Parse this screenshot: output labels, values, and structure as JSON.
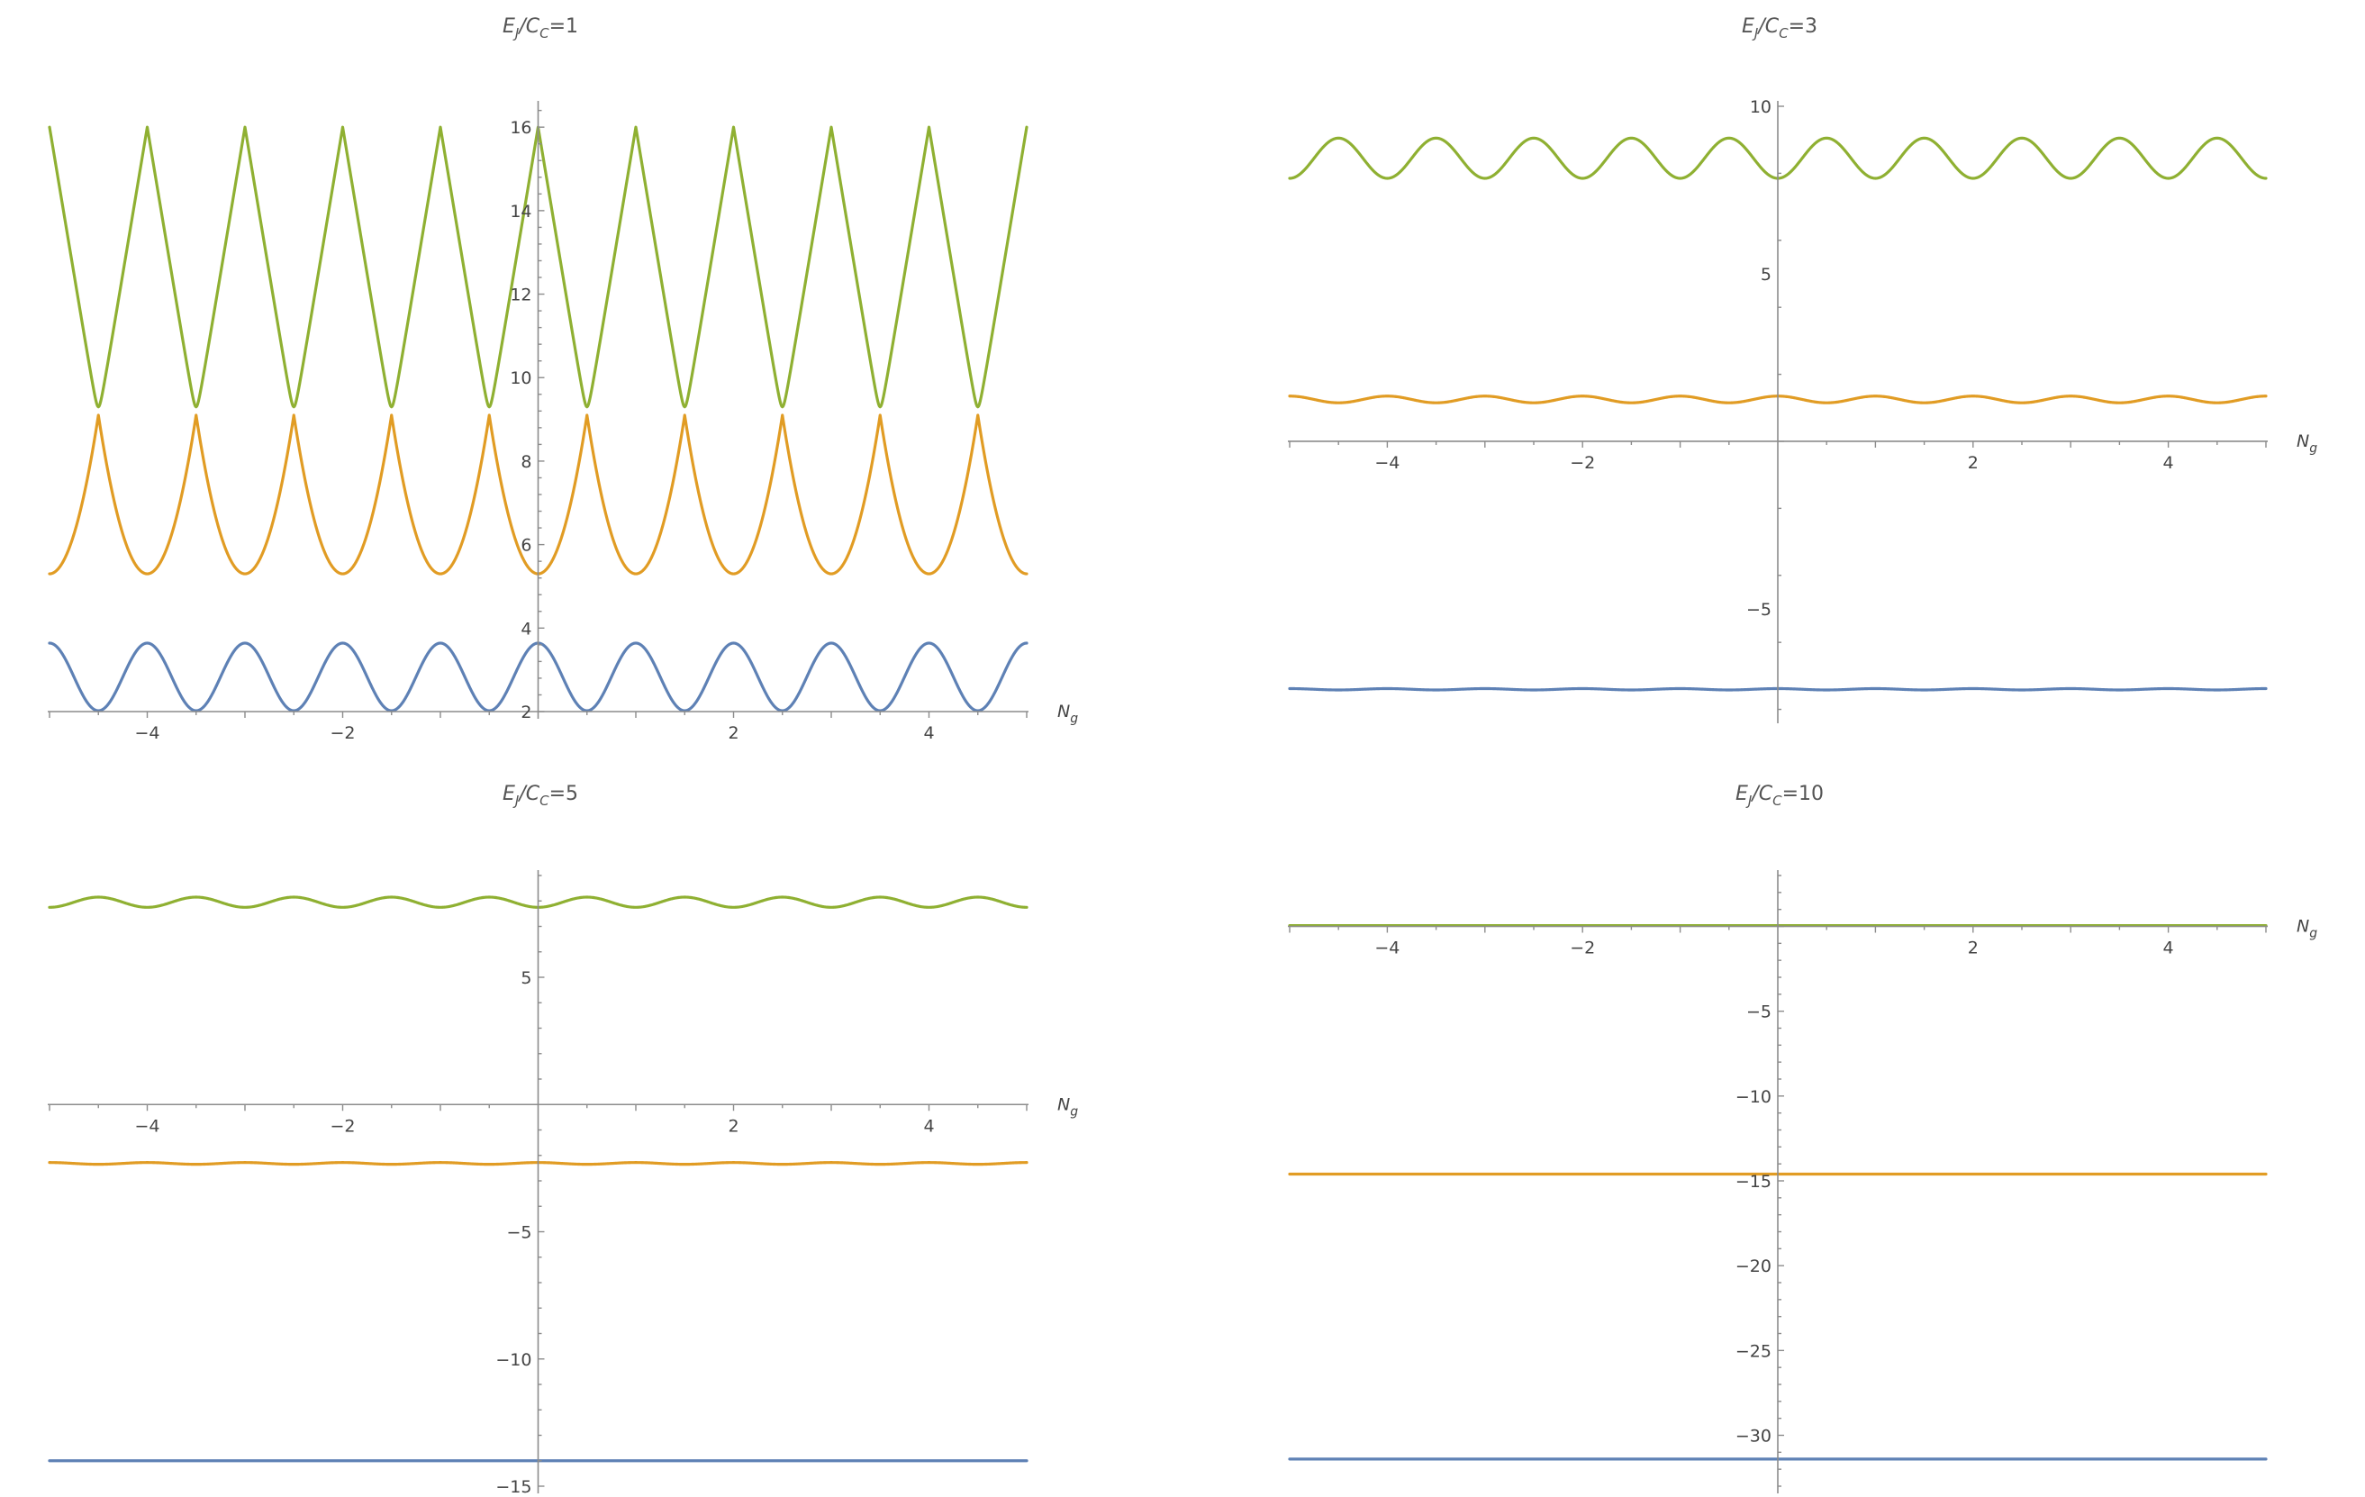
{
  "chart_data": [
    {
      "type": "line",
      "title": "E_J/E_C=1",
      "title_parts": {
        "e": "E",
        "j": "J",
        "slash": "/",
        "c": "C",
        "eq": "=1"
      },
      "xlabel": "N_g",
      "xlabel_parts": {
        "n": "N",
        "g": "g"
      },
      "ylabel": "",
      "xlim": [
        -5,
        5
      ],
      "ylim": [
        2,
        16.5
      ],
      "x_axis_at": 2,
      "xticks": [
        -4,
        -2,
        2,
        4
      ],
      "xtick_labels": [
        "−4",
        "−2",
        "2",
        "4"
      ],
      "yticks": [
        2,
        4,
        6,
        8,
        10,
        12,
        14,
        16
      ],
      "ytick_labels": [
        "2",
        "4",
        "6",
        "8",
        "10",
        "12",
        "14",
        "16"
      ],
      "grid": false,
      "series": [
        {
          "color": "#5e81b5",
          "shape": "cos",
          "period": 1,
          "min": 2.02,
          "max": 3.64,
          "max_at": 0
        },
        {
          "color": "#e19c24",
          "shape": "parabola",
          "period": 1,
          "min": 5.3,
          "max": 9.1,
          "min_at": 0
        },
        {
          "color": "#8fb032",
          "shape": "vee",
          "period": 1,
          "min": 9.3,
          "max": 16.0,
          "max_at": 0
        }
      ]
    },
    {
      "type": "line",
      "title": "E_J/E_C=3",
      "title_parts": {
        "e": "E",
        "j": "J",
        "slash": "/",
        "c": "C",
        "eq": "=3"
      },
      "xlabel": "N_g",
      "xlabel_parts": {
        "n": "N",
        "g": "g"
      },
      "ylabel": "",
      "xlim": [
        -5,
        5
      ],
      "ylim": [
        -8.2,
        10
      ],
      "x_axis_at": 0,
      "xticks": [
        -4,
        -2,
        2,
        4
      ],
      "xtick_labels": [
        "−4",
        "−2",
        "2",
        "4"
      ],
      "yticks": [
        -5,
        5,
        10
      ],
      "ytick_labels": [
        "−5",
        "5",
        "10"
      ],
      "grid": false,
      "series": [
        {
          "color": "#5e81b5",
          "shape": "cos",
          "period": 1,
          "min": -7.42,
          "max": -7.38,
          "max_at": 0
        },
        {
          "color": "#e19c24",
          "shape": "cos",
          "period": 1,
          "min": 1.15,
          "max": 1.35,
          "max_at": 0
        },
        {
          "color": "#8fb032",
          "shape": "cos",
          "period": 1,
          "min": 7.85,
          "max": 9.05,
          "min_at": 0
        }
      ]
    },
    {
      "type": "line",
      "title": "E_J/E_C=5",
      "title_parts": {
        "e": "E",
        "j": "J",
        "slash": "/",
        "c": "C",
        "eq": "=5"
      },
      "xlabel": "N_g",
      "xlabel_parts": {
        "n": "N",
        "g": "g"
      },
      "ylabel": "",
      "xlim": [
        -5,
        5
      ],
      "ylim": [
        -15,
        9
      ],
      "x_axis_at": 0,
      "xticks": [
        -4,
        -2,
        2,
        4
      ],
      "xtick_labels": [
        "−4",
        "−2",
        "2",
        "4"
      ],
      "yticks": [
        -15,
        -10,
        -5,
        5
      ],
      "ytick_labels": [
        "−15",
        "−10",
        "−5",
        "5"
      ],
      "grid": false,
      "series": [
        {
          "color": "#5e81b5",
          "shape": "flat",
          "period": 1,
          "min": -14.0,
          "max": -14.0,
          "max_at": 0
        },
        {
          "color": "#e19c24",
          "shape": "cos",
          "period": 1,
          "min": -2.35,
          "max": -2.28,
          "max_at": 0
        },
        {
          "color": "#8fb032",
          "shape": "cos",
          "period": 1,
          "min": 7.75,
          "max": 8.15,
          "min_at": 0
        }
      ]
    },
    {
      "type": "line",
      "title": "E_J/E_C=10",
      "title_parts": {
        "e": "E",
        "j": "J",
        "slash": "/",
        "c": "C",
        "eq": "=10"
      },
      "xlabel": "N_g",
      "xlabel_parts": {
        "n": "N",
        "g": "g"
      },
      "ylabel": "",
      "xlim": [
        -5,
        5
      ],
      "ylim": [
        -33,
        3
      ],
      "x_axis_at": 0,
      "xticks": [
        -4,
        -2,
        2,
        4
      ],
      "xtick_labels": [
        "−4",
        "−2",
        "2",
        "4"
      ],
      "yticks": [
        -30,
        -25,
        -20,
        -15,
        -10,
        -5
      ],
      "ytick_labels": [
        "−30",
        "−25",
        "−20",
        "−15",
        "−10",
        "−5"
      ],
      "grid": false,
      "series": [
        {
          "color": "#5e81b5",
          "shape": "flat",
          "period": 1,
          "min": -31.4,
          "max": -31.4,
          "max_at": 0
        },
        {
          "color": "#e19c24",
          "shape": "flat",
          "period": 1,
          "min": -14.6,
          "max": -14.6,
          "max_at": 0
        },
        {
          "color": "#8fb032",
          "shape": "flat",
          "period": 1,
          "min": 0.05,
          "max": 0.05,
          "max_at": 0
        }
      ]
    }
  ]
}
